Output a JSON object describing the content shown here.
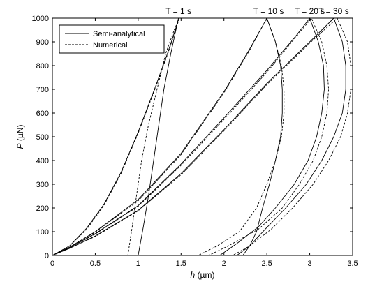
{
  "chart_data": {
    "type": "line",
    "title": "",
    "xlabel_italic": "h",
    "xlabel_unit": " (µm)",
    "ylabel_italic": "P",
    "ylabel_unit": " (µN)",
    "xlim": [
      0,
      3.5
    ],
    "ylim": [
      0,
      1000
    ],
    "xticks": [
      0,
      0.5,
      1,
      1.5,
      2,
      2.5,
      3,
      3.5
    ],
    "xtick_labels": [
      "0",
      "0.5",
      "1",
      "1.5",
      "2",
      "2.5",
      "3",
      "3.5"
    ],
    "yticks": [
      0,
      100,
      200,
      300,
      400,
      500,
      600,
      700,
      800,
      900,
      1000
    ],
    "ytick_labels": [
      "0",
      "100",
      "200",
      "300",
      "400",
      "500",
      "600",
      "700",
      "800",
      "900",
      "1000"
    ],
    "grid": false,
    "legend_position": "top-left",
    "legend": [
      {
        "label": "Semi-analytical",
        "style": "solid"
      },
      {
        "label": "Numerical",
        "style": "dashed"
      }
    ],
    "annotations": [
      {
        "text": "T = 1 s",
        "x": 1.47,
        "y": 1000
      },
      {
        "text": "T = 10 s",
        "x": 2.52,
        "y": 1000
      },
      {
        "text": "T = 20 s",
        "x": 3.0,
        "y": 1000
      },
      {
        "text": "T = 30 s",
        "x": 3.28,
        "y": 1000
      }
    ],
    "series": [
      {
        "style": "solid",
        "points": [
          [
            0,
            0
          ],
          [
            0.2,
            40
          ],
          [
            0.4,
            115
          ],
          [
            0.6,
            215
          ],
          [
            0.8,
            350
          ],
          [
            1.0,
            520
          ],
          [
            1.2,
            710
          ],
          [
            1.35,
            860
          ],
          [
            1.45,
            970
          ],
          [
            1.47,
            1000
          ],
          [
            1.44,
            950
          ],
          [
            1.38,
            850
          ],
          [
            1.3,
            700
          ],
          [
            1.24,
            550
          ],
          [
            1.18,
            400
          ],
          [
            1.12,
            250
          ],
          [
            1.06,
            120
          ],
          [
            1.0,
            0
          ]
        ]
      },
      {
        "style": "dashed",
        "points": [
          [
            0,
            0
          ],
          [
            0.2,
            40
          ],
          [
            0.4,
            110
          ],
          [
            0.6,
            210
          ],
          [
            0.8,
            345
          ],
          [
            1.0,
            515
          ],
          [
            1.2,
            705
          ],
          [
            1.35,
            855
          ],
          [
            1.45,
            965
          ],
          [
            1.48,
            1000
          ],
          [
            1.42,
            950
          ],
          [
            1.32,
            850
          ],
          [
            1.22,
            700
          ],
          [
            1.12,
            550
          ],
          [
            1.04,
            400
          ],
          [
            0.98,
            250
          ],
          [
            0.93,
            120
          ],
          [
            0.88,
            0
          ]
        ]
      },
      {
        "style": "solid",
        "points": [
          [
            0,
            0
          ],
          [
            0.2,
            35
          ],
          [
            0.5,
            100
          ],
          [
            1.0,
            235
          ],
          [
            1.5,
            430
          ],
          [
            2.0,
            690
          ],
          [
            2.3,
            870
          ],
          [
            2.5,
            1000
          ],
          [
            2.6,
            900
          ],
          [
            2.66,
            800
          ],
          [
            2.68,
            700
          ],
          [
            2.68,
            600
          ],
          [
            2.66,
            500
          ],
          [
            2.6,
            400
          ],
          [
            2.53,
            300
          ],
          [
            2.45,
            200
          ],
          [
            2.38,
            100
          ],
          [
            2.3,
            40
          ],
          [
            2.22,
            0
          ]
        ]
      },
      {
        "style": "dashed",
        "points": [
          [
            0,
            0
          ],
          [
            0.2,
            34
          ],
          [
            0.5,
            98
          ],
          [
            1.0,
            230
          ],
          [
            1.5,
            425
          ],
          [
            2.0,
            685
          ],
          [
            2.3,
            865
          ],
          [
            2.5,
            1000
          ],
          [
            2.6,
            900
          ],
          [
            2.67,
            800
          ],
          [
            2.7,
            700
          ],
          [
            2.7,
            600
          ],
          [
            2.67,
            500
          ],
          [
            2.6,
            400
          ],
          [
            2.5,
            300
          ],
          [
            2.38,
            200
          ],
          [
            2.18,
            100
          ],
          [
            1.92,
            40
          ],
          [
            1.7,
            0
          ]
        ]
      },
      {
        "style": "solid",
        "points": [
          [
            0,
            0
          ],
          [
            0.2,
            33
          ],
          [
            0.5,
            92
          ],
          [
            1.0,
            210
          ],
          [
            1.5,
            385
          ],
          [
            2.0,
            580
          ],
          [
            2.5,
            780
          ],
          [
            2.85,
            930
          ],
          [
            3.0,
            1000
          ],
          [
            3.1,
            900
          ],
          [
            3.16,
            800
          ],
          [
            3.17,
            700
          ],
          [
            3.14,
            600
          ],
          [
            3.08,
            500
          ],
          [
            2.98,
            400
          ],
          [
            2.82,
            300
          ],
          [
            2.6,
            200
          ],
          [
            2.4,
            120
          ],
          [
            2.15,
            50
          ],
          [
            1.95,
            0
          ]
        ]
      },
      {
        "style": "dashed",
        "points": [
          [
            0,
            0
          ],
          [
            0.2,
            32
          ],
          [
            0.5,
            90
          ],
          [
            1.0,
            207
          ],
          [
            1.5,
            380
          ],
          [
            2.0,
            573
          ],
          [
            2.5,
            772
          ],
          [
            2.85,
            925
          ],
          [
            3.02,
            1000
          ],
          [
            3.14,
            900
          ],
          [
            3.2,
            800
          ],
          [
            3.22,
            700
          ],
          [
            3.2,
            600
          ],
          [
            3.14,
            500
          ],
          [
            3.04,
            400
          ],
          [
            2.88,
            300
          ],
          [
            2.68,
            200
          ],
          [
            2.4,
            110
          ],
          [
            2.05,
            40
          ],
          [
            1.82,
            0
          ]
        ]
      },
      {
        "style": "solid",
        "points": [
          [
            0,
            0
          ],
          [
            0.2,
            30
          ],
          [
            0.5,
            82
          ],
          [
            1.0,
            190
          ],
          [
            1.5,
            345
          ],
          [
            2.0,
            530
          ],
          [
            2.5,
            725
          ],
          [
            3.0,
            900
          ],
          [
            3.28,
            1000
          ],
          [
            3.38,
            900
          ],
          [
            3.42,
            800
          ],
          [
            3.42,
            700
          ],
          [
            3.38,
            600
          ],
          [
            3.28,
            500
          ],
          [
            3.14,
            400
          ],
          [
            2.96,
            300
          ],
          [
            2.72,
            200
          ],
          [
            2.48,
            110
          ],
          [
            2.3,
            40
          ],
          [
            2.15,
            0
          ]
        ]
      },
      {
        "style": "dashed",
        "points": [
          [
            0,
            0
          ],
          [
            0.2,
            30
          ],
          [
            0.5,
            80
          ],
          [
            1.0,
            188
          ],
          [
            1.5,
            340
          ],
          [
            2.0,
            525
          ],
          [
            2.5,
            720
          ],
          [
            3.0,
            895
          ],
          [
            3.32,
            1000
          ],
          [
            3.44,
            900
          ],
          [
            3.48,
            800
          ],
          [
            3.48,
            700
          ],
          [
            3.44,
            600
          ],
          [
            3.36,
            500
          ],
          [
            3.22,
            400
          ],
          [
            3.04,
            300
          ],
          [
            2.8,
            200
          ],
          [
            2.55,
            110
          ],
          [
            2.3,
            40
          ],
          [
            2.1,
            0
          ]
        ]
      }
    ]
  }
}
